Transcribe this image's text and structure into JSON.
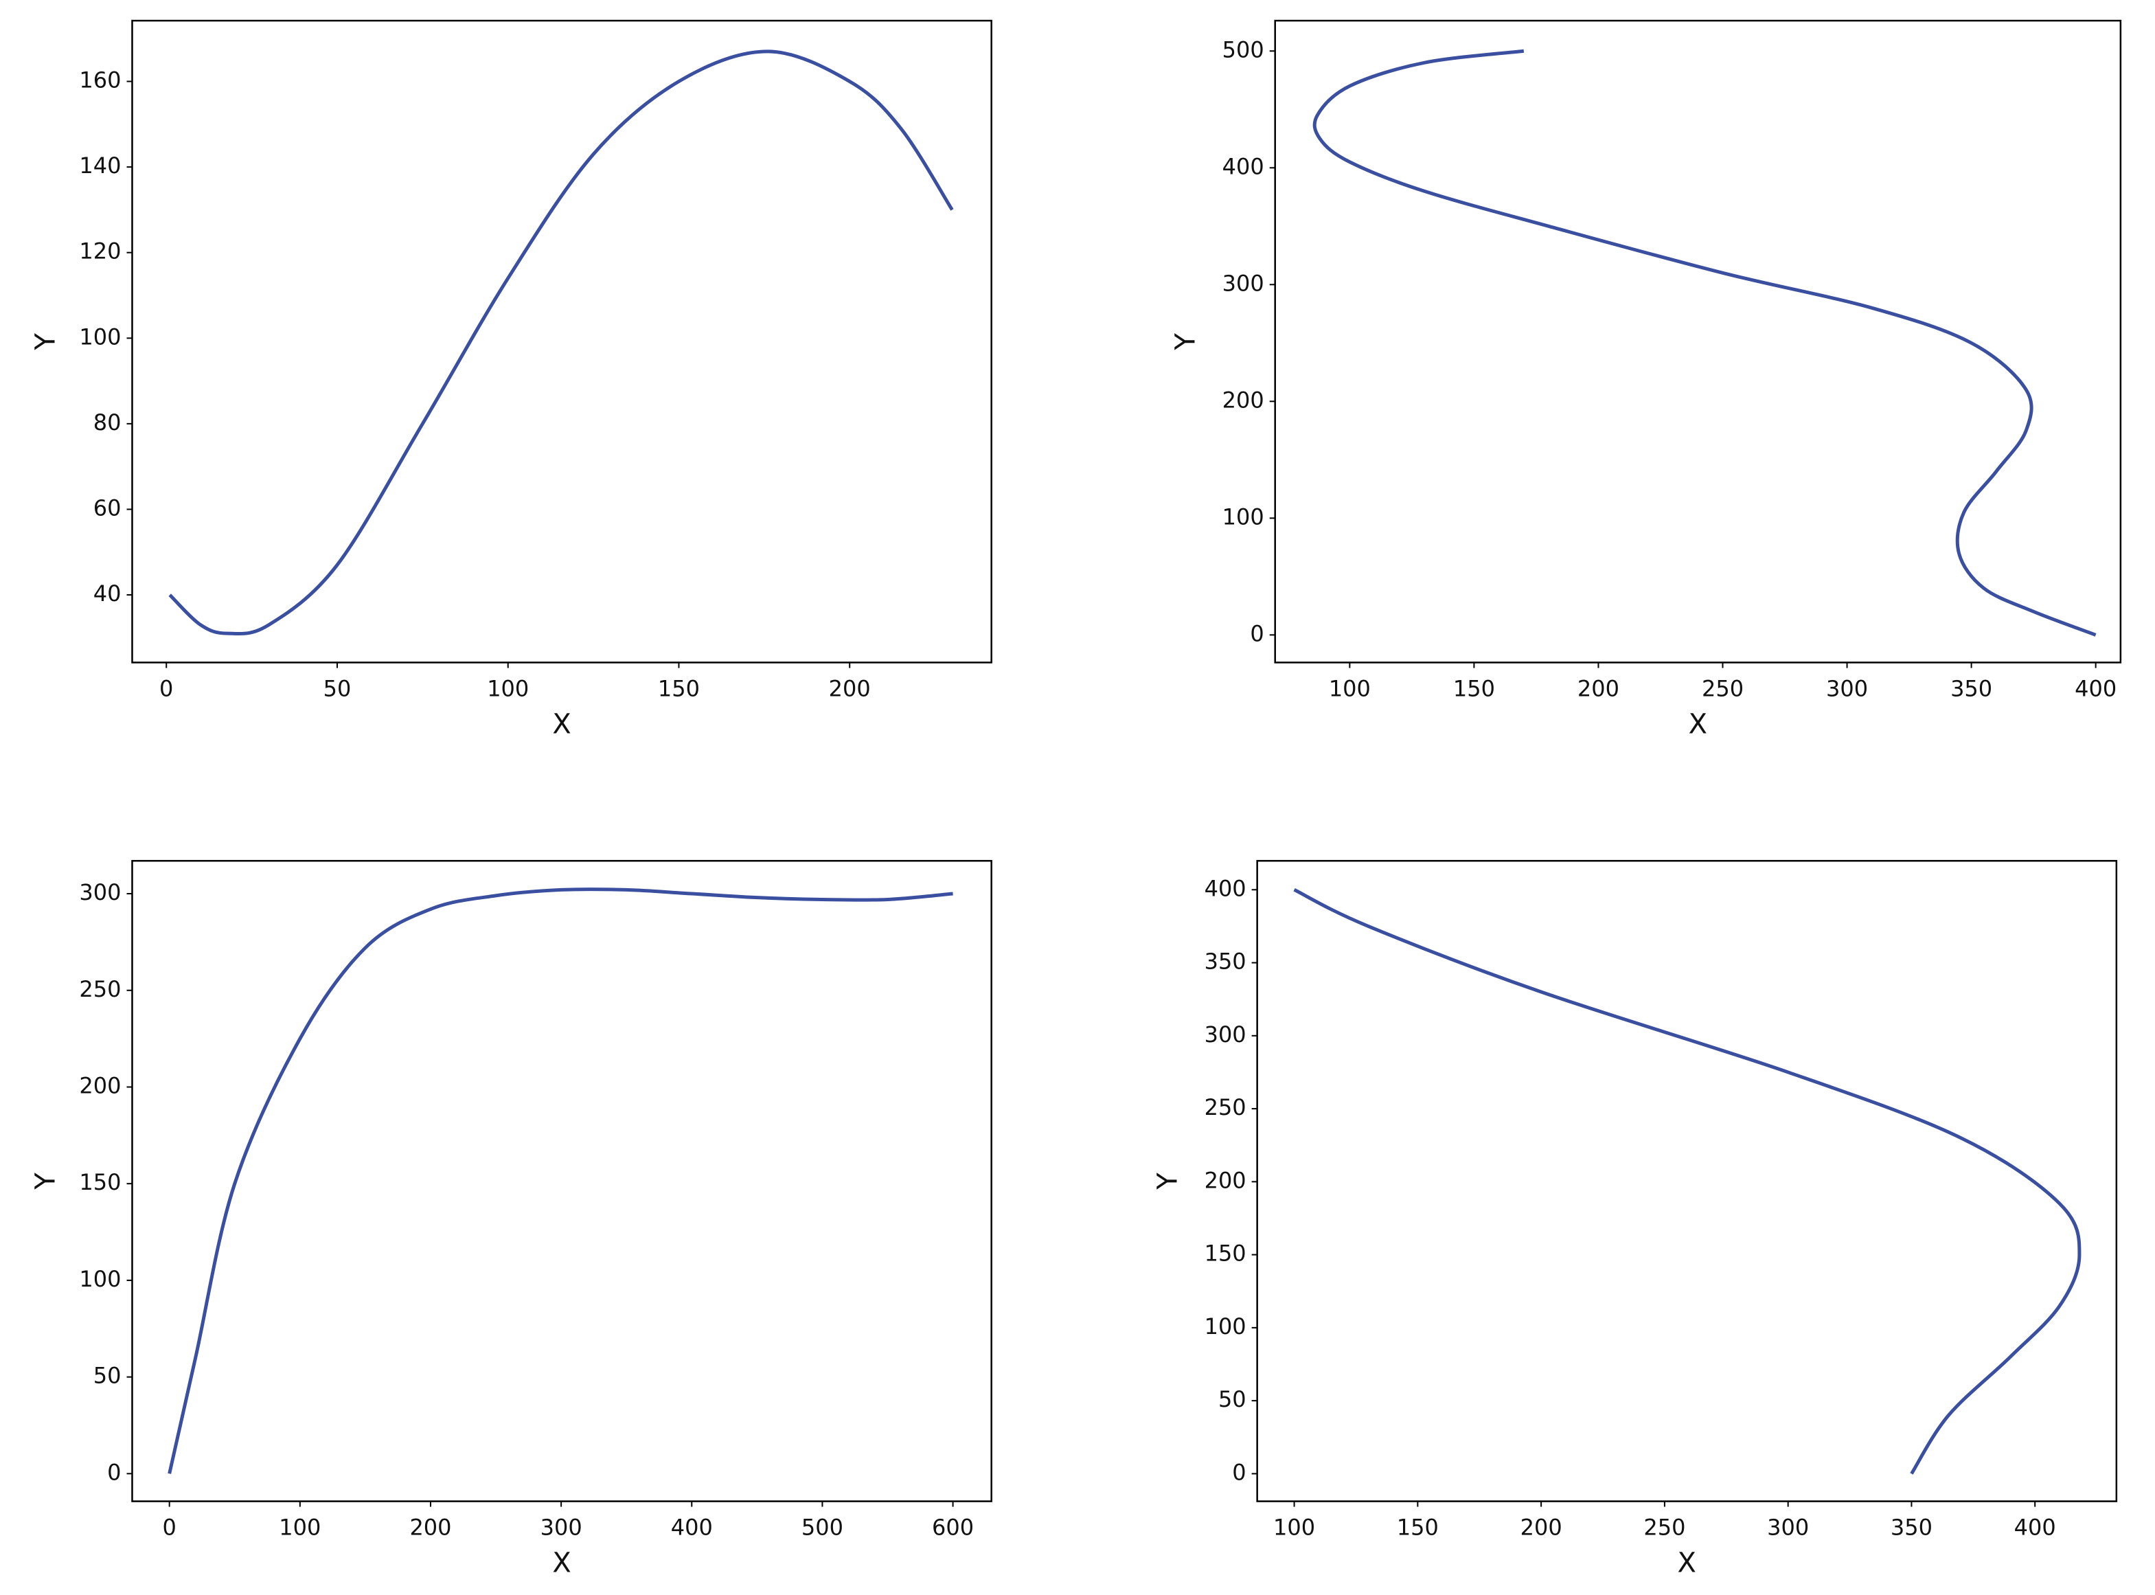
{
  "chart_data": [
    {
      "type": "line",
      "xlabel": "X",
      "ylabel": "Y",
      "color": "#3a4fa0",
      "x": [
        1,
        10,
        18,
        30,
        50,
        75,
        100,
        125,
        150,
        176,
        200,
        215,
        230
      ],
      "values": [
        40,
        33,
        31,
        33,
        47,
        80,
        114,
        143,
        160,
        167,
        160,
        149,
        130
      ],
      "xlim": [
        -10,
        241.5
      ],
      "ylim": [
        24.2,
        174.2
      ],
      "xticks": [
        0,
        50,
        100,
        150,
        200
      ],
      "yticks": [
        40,
        60,
        80,
        100,
        120,
        140,
        160
      ]
    },
    {
      "type": "line",
      "xlabel": "X",
      "ylabel": "Y",
      "color": "#3a4fa0",
      "x": [
        170,
        130,
        100,
        87,
        88,
        100,
        130,
        180,
        250,
        310,
        350,
        372,
        372,
        360,
        347,
        345,
        355,
        375,
        400
      ],
      "values": [
        500,
        490,
        470,
        445,
        425,
        405,
        380,
        350,
        310,
        280,
        250,
        210,
        175,
        140,
        105,
        70,
        40,
        20,
        0
      ],
      "xlim": [
        70,
        410
      ],
      "ylim": [
        -23.6,
        526
      ],
      "xticks": [
        100,
        150,
        200,
        250,
        300,
        350,
        400
      ],
      "yticks": [
        0,
        100,
        200,
        300,
        400,
        500
      ]
    },
    {
      "type": "line",
      "xlabel": "X",
      "ylabel": "Y",
      "color": "#3a4fa0",
      "x": [
        0,
        20,
        50,
        100,
        150,
        200,
        250,
        300,
        350,
        400,
        450,
        500,
        550,
        600
      ],
      "values": [
        0,
        60,
        150,
        225,
        272,
        292,
        299,
        302,
        302,
        300,
        298,
        297,
        297,
        300
      ],
      "xlim": [
        -28.5,
        629.5
      ],
      "ylim": [
        -14.3,
        317
      ],
      "xticks": [
        0,
        100,
        200,
        300,
        400,
        500,
        600
      ],
      "yticks": [
        0,
        50,
        100,
        150,
        200,
        250,
        300
      ]
    },
    {
      "type": "line",
      "xlabel": "X",
      "ylabel": "Y",
      "color": "#3a4fa0",
      "x": [
        100,
        130,
        200,
        300,
        370,
        410,
        418,
        410,
        390,
        365,
        350
      ],
      "values": [
        400,
        375,
        330,
        275,
        230,
        185,
        150,
        115,
        80,
        40,
        0
      ],
      "xlim": [
        85,
        433
      ],
      "ylim": [
        -18.9,
        419.8
      ],
      "xticks": [
        100,
        150,
        200,
        250,
        300,
        350,
        400
      ],
      "yticks": [
        0,
        50,
        100,
        150,
        200,
        250,
        300,
        350,
        400
      ]
    }
  ]
}
